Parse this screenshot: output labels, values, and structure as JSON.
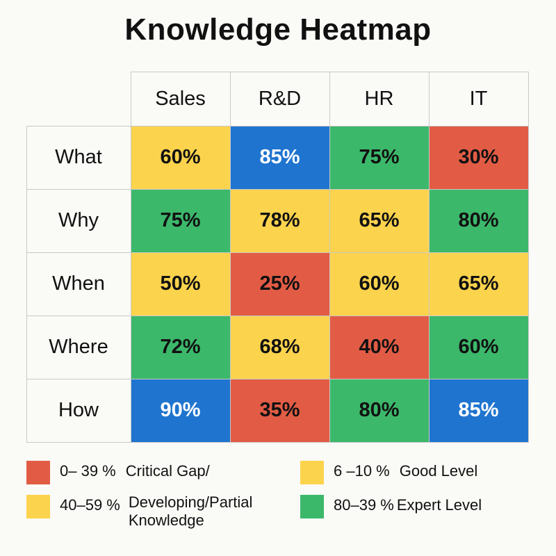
{
  "chart_data": {
    "type": "heatmap",
    "title": "Knowledge Heatmap",
    "columns": [
      "Sales",
      "R&D",
      "HR",
      "IT"
    ],
    "rows": [
      "What",
      "Why",
      "When",
      "Where",
      "How"
    ],
    "values": [
      [
        60,
        85,
        75,
        30
      ],
      [
        75,
        78,
        65,
        80
      ],
      [
        50,
        25,
        60,
        65
      ],
      [
        72,
        68,
        40,
        60
      ],
      [
        90,
        35,
        80,
        85
      ]
    ],
    "cell_colors": [
      [
        "yellow",
        "blue",
        "green",
        "red"
      ],
      [
        "green",
        "yellow",
        "yellow",
        "green"
      ],
      [
        "yellow",
        "red",
        "yellow",
        "yellow"
      ],
      [
        "green",
        "yellow",
        "red",
        "green"
      ],
      [
        "blue",
        "red",
        "green",
        "blue"
      ]
    ],
    "value_suffix": "%",
    "colors": {
      "red": "#e25c45",
      "yellow": "#fcd34d",
      "green": "#3cb86b",
      "blue": "#1f74cf"
    },
    "legend": [
      {
        "color": "#e25c45",
        "range": "0– 39 %",
        "label": "Critical Gap/"
      },
      {
        "color": "#fcd34d",
        "range": "40–59 %",
        "label": "Developing/Partial Knowledge"
      },
      {
        "color": "#fcd34d",
        "range": "6 –10 %",
        "label": "Good Level"
      },
      {
        "color": "#3cb86b",
        "range": "80–39 %",
        "label": "Expert Level"
      }
    ],
    "legend_placement": "bottom"
  }
}
